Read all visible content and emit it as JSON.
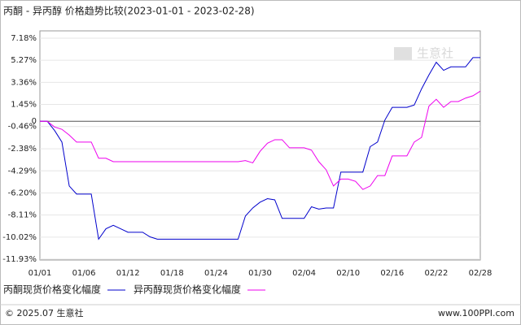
{
  "chart_data": {
    "type": "line",
    "title": "丙酮 - 异丙醇 价格趋势比较(2023-01-01 - 2023-02-28)",
    "watermark": "生意社",
    "categories": [
      "01/01",
      null,
      null,
      null,
      null,
      null,
      "01/06",
      null,
      null,
      null,
      null,
      null,
      "01/12",
      null,
      null,
      null,
      null,
      null,
      "01/18",
      null,
      null,
      null,
      null,
      null,
      "01/24",
      null,
      null,
      null,
      null,
      null,
      "01/30",
      null,
      null,
      null,
      null,
      null,
      "02/04",
      null,
      null,
      null,
      null,
      null,
      "02/10",
      null,
      null,
      null,
      null,
      null,
      "02/16",
      null,
      null,
      null,
      null,
      null,
      "02/22",
      null,
      null,
      null,
      null,
      null,
      "02/28"
    ],
    "series": [
      {
        "name": "丙酮现货价格变化幅度",
        "color": "#0000cc",
        "values": [
          0,
          0,
          -0.8,
          -1.8,
          -5.6,
          -6.3,
          -6.3,
          -6.3,
          -10.2,
          -9.3,
          -9.0,
          -9.3,
          -9.6,
          -9.6,
          -9.6,
          -10.0,
          -10.2,
          -10.2,
          -10.2,
          -10.2,
          -10.2,
          -10.2,
          -10.2,
          -10.2,
          -10.2,
          -10.2,
          -10.2,
          -10.2,
          -8.2,
          -7.5,
          -7.0,
          -6.7,
          -6.8,
          -8.4,
          -8.4,
          -8.4,
          -8.4,
          -7.4,
          -7.6,
          -7.5,
          -7.5,
          -4.4,
          -4.4,
          -4.4,
          -4.4,
          -2.2,
          -1.8,
          0.1,
          1.2,
          1.2,
          1.2,
          1.4,
          2.8,
          4.0,
          5.1,
          4.4,
          4.7,
          4.7,
          4.7,
          5.5,
          5.5
        ]
      },
      {
        "name": "异丙醇现货价格变化幅度",
        "color": "#ee00ee",
        "values": [
          0,
          0,
          -0.5,
          -0.7,
          -1.2,
          -1.8,
          -1.8,
          -1.8,
          -3.2,
          -3.2,
          -3.5,
          -3.5,
          -3.5,
          -3.5,
          -3.5,
          -3.5,
          -3.5,
          -3.5,
          -3.5,
          -3.5,
          -3.5,
          -3.5,
          -3.5,
          -3.5,
          -3.5,
          -3.5,
          -3.5,
          -3.5,
          -3.4,
          -3.6,
          -2.6,
          -1.9,
          -1.6,
          -1.6,
          -2.3,
          -2.3,
          -2.3,
          -2.5,
          -3.5,
          -4.2,
          -5.6,
          -5.0,
          -5.0,
          -5.2,
          -5.9,
          -5.6,
          -4.7,
          -4.7,
          -3.0,
          -3.0,
          -3.0,
          -1.8,
          -1.4,
          1.3,
          1.9,
          1.2,
          1.7,
          1.7,
          2.0,
          2.2,
          2.6
        ]
      }
    ],
    "ylim": [
      -11.93,
      7.18
    ],
    "yticks": [
      {
        "value": 7.18,
        "label": "7.18%"
      },
      {
        "value": 5.27,
        "label": "5.27%"
      },
      {
        "value": 3.36,
        "label": "3.36%"
      },
      {
        "value": 1.45,
        "label": "1.45%"
      },
      0,
      {
        "value": -0.46,
        "label": "-0.46%"
      },
      {
        "value": -2.38,
        "label": "-2.38%"
      },
      {
        "value": -4.29,
        "label": "-4.29%"
      },
      {
        "value": -6.2,
        "label": "-6.20%"
      },
      {
        "value": -8.11,
        "label": "-8.11%"
      },
      {
        "value": -10.02,
        "label": "-10.02%"
      },
      {
        "value": -11.93,
        "label": "-11.93%"
      }
    ],
    "grid": true
  },
  "footer": {
    "copyright": "© 2025.07 生意社",
    "site": "www.100PPI.com"
  }
}
